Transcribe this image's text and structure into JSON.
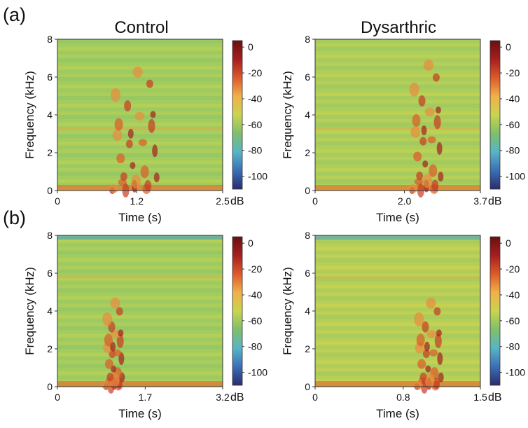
{
  "figure": {
    "row_labels": [
      "(a)",
      "(b)"
    ],
    "column_titles": [
      "Control",
      "Dysarthric"
    ]
  },
  "colorbar": {
    "ticks": [
      0,
      -20,
      -40,
      -60,
      -80,
      -100
    ],
    "unit": "dB",
    "range": [
      -110,
      5
    ],
    "colormap": [
      "#2a2c6e",
      "#3b6fb6",
      "#57b5c6",
      "#7fbf6a",
      "#c9d44e",
      "#f1b04a",
      "#dd5a2a",
      "#a51f1f",
      "#6b0f0f"
    ]
  },
  "chart_data": [
    {
      "type": "heatmap",
      "row": "(a)",
      "title": "Control",
      "xlabel": "Time (s)",
      "ylabel": "Frequency (kHz)",
      "xlim": [
        0,
        2.5
      ],
      "ylim": [
        0,
        8
      ],
      "xticks": [
        "0",
        "1.2",
        "2.5"
      ],
      "yticks": [
        "0",
        "2",
        "4",
        "6",
        "8"
      ],
      "colorbar_unit": "dB"
    },
    {
      "type": "heatmap",
      "row": "(a)",
      "title": "Dysarthric",
      "xlabel": "Time (s)",
      "ylabel": "Frequency (kHz)",
      "xlim": [
        0,
        3.7
      ],
      "ylim": [
        0,
        8
      ],
      "xticks": [
        "0",
        "2.0",
        "3.7"
      ],
      "yticks": [
        "0",
        "2",
        "4",
        "6",
        "8"
      ],
      "colorbar_unit": "dB"
    },
    {
      "type": "heatmap",
      "row": "(b)",
      "title": "",
      "xlabel": "Time (s)",
      "ylabel": "Frequency (kHz)",
      "xlim": [
        0,
        3.2
      ],
      "ylim": [
        0,
        8
      ],
      "xticks": [
        "0",
        "1.7",
        "3.2"
      ],
      "yticks": [
        "0",
        "2",
        "4",
        "6",
        "8"
      ],
      "colorbar_unit": "dB"
    },
    {
      "type": "heatmap",
      "row": "(b)",
      "title": "",
      "xlabel": "Time (s)",
      "ylabel": "Frequency (kHz)",
      "xlim": [
        0,
        1.5
      ],
      "ylim": [
        0,
        8
      ],
      "xticks": [
        "0",
        "0.8",
        "1.5"
      ],
      "yticks": [
        "0",
        "2",
        "4",
        "6",
        "8"
      ],
      "colorbar_unit": "dB"
    }
  ]
}
